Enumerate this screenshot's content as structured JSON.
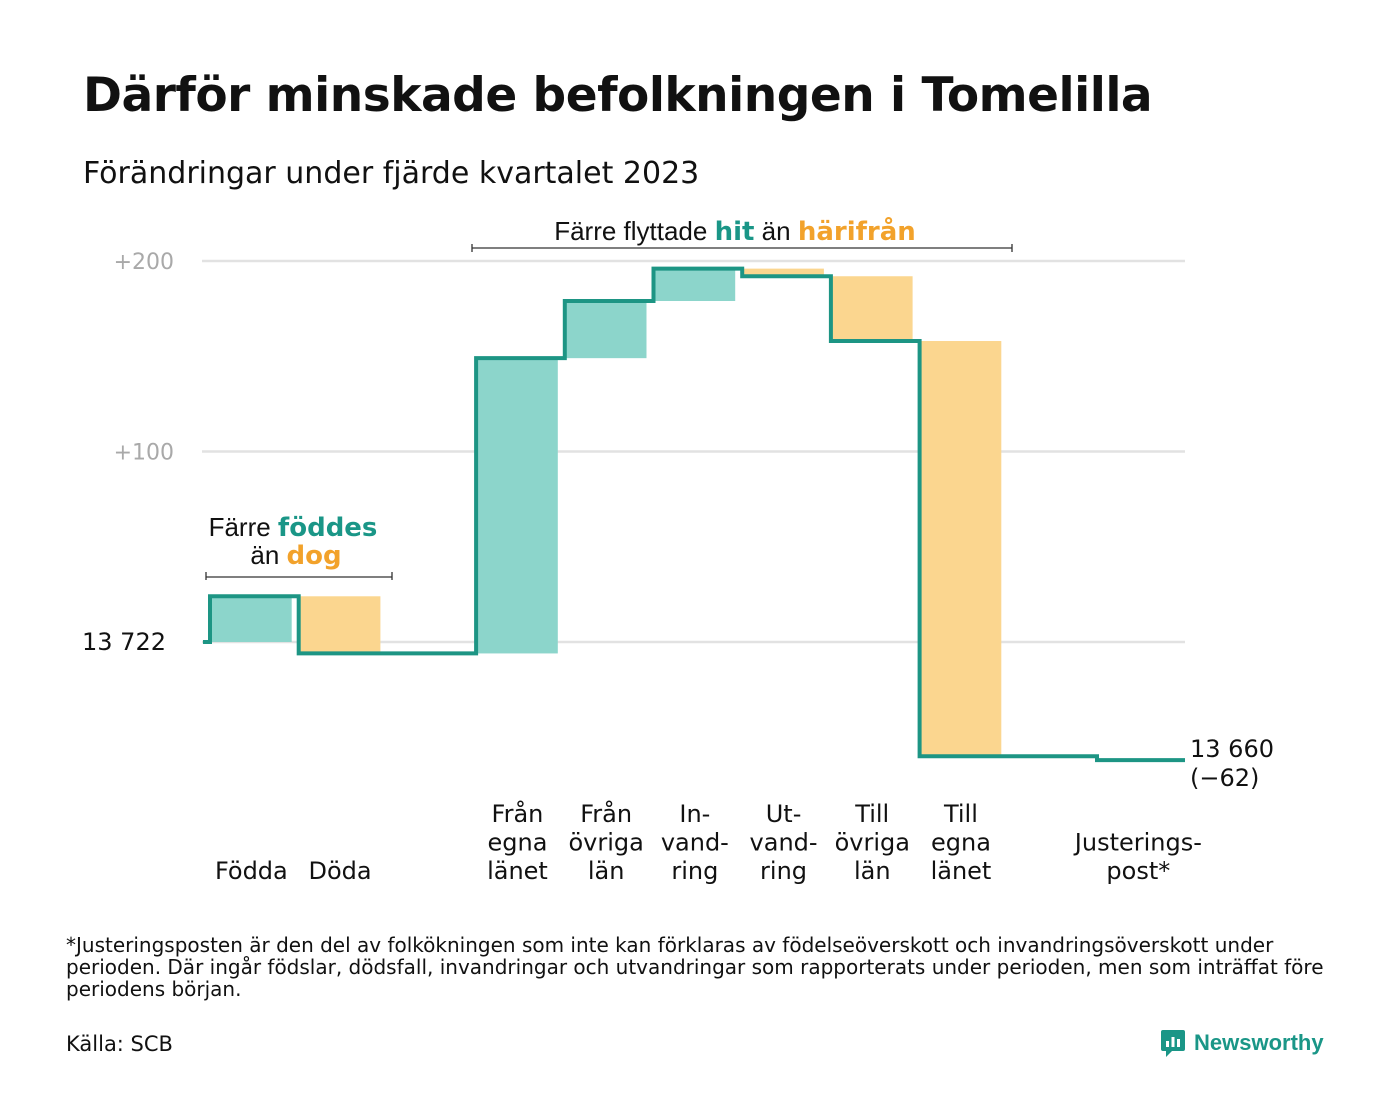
{
  "title": "Därför minskade befolkningen i Tomelilla",
  "subtitle": "Förändringar under fjärde kvartalet 2023",
  "colors": {
    "inflow": "#8cd5cb",
    "outflow": "#fbd68f",
    "line": "#1d9584",
    "accent_teal": "#1a9687",
    "accent_orange": "#f2a22b",
    "grid": "#e2e2e2"
  },
  "annotations": {
    "births": {
      "line1_prefix": "Färre ",
      "line1_emph": "föddes",
      "line2_prefix": "än ",
      "line2_emph": "dog"
    },
    "migration": {
      "prefix": "Färre flyttade ",
      "emph1": "hit",
      "mid": " än ",
      "emph2": "härifrån"
    }
  },
  "start_label": "13 722",
  "end_label": {
    "value": "13 660",
    "change": "(−62)"
  },
  "chart_data": {
    "type": "waterfall",
    "start": 13722,
    "end": 13660,
    "baseline": 13722,
    "ylim": [
      13722,
      13922
    ],
    "y_ticks": [
      {
        "value": 13822,
        "label": "+100"
      },
      {
        "value": 13922,
        "label": "+200"
      }
    ],
    "grid": true,
    "steps": [
      {
        "label": [
          "Födda"
        ],
        "change": 24,
        "kind": "inflow"
      },
      {
        "label": [
          "Döda"
        ],
        "change": -30,
        "kind": "outflow"
      },
      {
        "label": [],
        "change": 0,
        "kind": "gap"
      },
      {
        "label": [
          "Från",
          "egna",
          "länet"
        ],
        "change": 155,
        "kind": "inflow"
      },
      {
        "label": [
          "Från",
          "övriga",
          "län"
        ],
        "change": 30,
        "kind": "inflow"
      },
      {
        "label": [
          "In-",
          "vand-",
          "ring"
        ],
        "change": 17,
        "kind": "inflow"
      },
      {
        "label": [
          "Ut-",
          "vand-",
          "ring"
        ],
        "change": -4,
        "kind": "outflow"
      },
      {
        "label": [
          "Till",
          "övriga",
          "län"
        ],
        "change": -34,
        "kind": "outflow"
      },
      {
        "label": [
          "Till",
          "egna",
          "länet"
        ],
        "change": -218,
        "kind": "outflow"
      },
      {
        "label": [],
        "change": 0,
        "kind": "gap"
      },
      {
        "label": [
          "Justerings-",
          "post*"
        ],
        "change": -2,
        "kind": "adjustment"
      }
    ]
  },
  "footnote": "*Justeringsposten är den del av folkökningen som inte kan förklaras av födelseöverskott och invandringsöverskott under perioden. Där ingår födslar, dödsfall, invandringar och utvandringar som rapporterats under perioden, men som inträffat före periodens början.",
  "source": "Källa: SCB",
  "brand": {
    "name": "Newsworthy",
    "icon": "newsworthy-logo-icon"
  }
}
